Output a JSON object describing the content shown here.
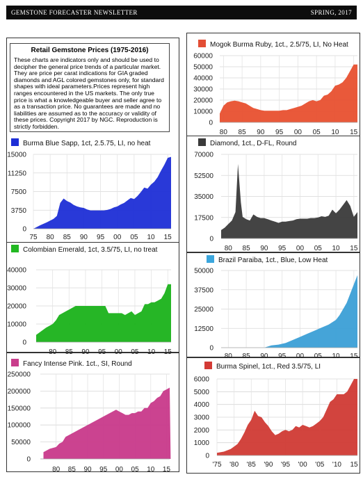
{
  "header": {
    "left": "GEMSTONE FORECASTER NEWSLETTER",
    "right": "SPRING, 2017"
  },
  "intro": {
    "title": "Retail Gemstone Prices (1975-2016)",
    "body": "These charts are indicators only and should be used to decipher the general price trends of a particular market.  They are price per carat indications for GIA graded diamonds and AGL colored gemstones only, for standard shapes with ideal parameters.Prices represent high ranges encountered in the US markets. The only true price is what a knowledgeable buyer and seller agree to as a transaction price.  No guarantees are made and no liabilities are assumed as to the accuracy or validity of these prices.  Copyright 2017 by NGC.  Reproduction is strictly forbidden."
  },
  "chart_data": [
    {
      "id": "sapphire",
      "type": "area",
      "title": "Burma Blue Sapp, 1ct, 2.5.75, LI, no heat",
      "color": "#1d2ed6",
      "legend_color": "#1d2ed6",
      "ylim": [
        0,
        15000
      ],
      "yticks": [
        "0",
        "3750",
        "7500",
        "11250",
        "15000"
      ],
      "xlim": [
        1975,
        2016
      ],
      "xticks": [
        1975,
        1980,
        1985,
        1990,
        1995,
        2000,
        2005,
        2010,
        2015
      ],
      "xtick_labels": [
        "75",
        "80",
        "85",
        "90",
        "95",
        "00",
        "05",
        "10",
        "15"
      ],
      "x": [
        1975,
        1977,
        1979,
        1981,
        1982,
        1983,
        1984,
        1985,
        1986,
        1987,
        1988,
        1989,
        1990,
        1991,
        1992,
        1994,
        1996,
        1997,
        1998,
        1999,
        2000,
        2001,
        2002,
        2003,
        2004,
        2005,
        2006,
        2007,
        2008,
        2009,
        2010,
        2011,
        2012,
        2013,
        2014,
        2015,
        2016
      ],
      "values": [
        0,
        700,
        1300,
        2000,
        2600,
        5200,
        6100,
        5600,
        5300,
        4800,
        4500,
        4300,
        4200,
        3900,
        3700,
        3700,
        3700,
        3800,
        4000,
        4300,
        4500,
        4900,
        5200,
        5700,
        6200,
        6000,
        6600,
        7400,
        8300,
        8100,
        8900,
        9500,
        10400,
        11700,
        12900,
        14300,
        14500
      ]
    },
    {
      "id": "emerald",
      "type": "area",
      "title": "Colombian Emerald, 1ct, 3.5/75, LI, no treat",
      "color": "#1ab21a",
      "legend_color": "#22b822",
      "ylim": [
        0,
        40000
      ],
      "yticks": [
        "0",
        "10000",
        "20000",
        "30000",
        "40000"
      ],
      "xlim": [
        1975,
        2016
      ],
      "xticks": [
        1980,
        1985,
        1990,
        1995,
        2000,
        2005,
        2010,
        2015
      ],
      "xtick_labels": [
        "80",
        "85",
        "90",
        "95",
        "00",
        "05",
        "10",
        "15"
      ],
      "x": [
        1975,
        1978,
        1980,
        1981,
        1982,
        1983,
        1984,
        1985,
        1986,
        1987,
        1988,
        1989,
        1990,
        1991,
        1992,
        1993,
        1994,
        1995,
        1996,
        1997,
        1998,
        1999,
        2000,
        2001,
        2002,
        2003,
        2004,
        2005,
        2006,
        2007,
        2008,
        2009,
        2010,
        2011,
        2012,
        2013,
        2014,
        2015,
        2016
      ],
      "values": [
        4000,
        8000,
        10000,
        12000,
        15000,
        16000,
        17000,
        18000,
        19000,
        20000,
        20000,
        20000,
        20000,
        20000,
        20000,
        20000,
        20000,
        20000,
        20000,
        16000,
        16000,
        16000,
        16000,
        16000,
        15000,
        16000,
        17000,
        15000,
        16000,
        17000,
        21000,
        21000,
        22000,
        22000,
        23000,
        24000,
        27000,
        32000,
        32000
      ]
    },
    {
      "id": "pink",
      "type": "area",
      "title": "Fancy Intense Pink. 1ct., SI, Round",
      "color": "#c8398a",
      "legend_color": "#c93d8c",
      "ylim": [
        0,
        250000
      ],
      "yticks": [
        "0",
        "50000",
        "100000",
        "150000",
        "200000",
        "250000"
      ],
      "xlim": [
        1975,
        2016
      ],
      "xticks": [
        1980,
        1985,
        1990,
        1995,
        2000,
        2005,
        2010,
        2015
      ],
      "xtick_labels": [
        "80",
        "85",
        "90",
        "95",
        "00",
        "05",
        "10",
        "15"
      ],
      "x": [
        1976,
        1978,
        1980,
        1981,
        1982,
        1983,
        1985,
        1987,
        1989,
        1991,
        1993,
        1995,
        1997,
        1999,
        2000,
        2001,
        2002,
        2003,
        2004,
        2005,
        2006,
        2007,
        2008,
        2009,
        2010,
        2011,
        2012,
        2013,
        2014,
        2015,
        2016,
        2016.3
      ],
      "values": [
        20000,
        30000,
        35000,
        45000,
        50000,
        65000,
        75000,
        85000,
        95000,
        105000,
        115000,
        125000,
        135000,
        145000,
        140000,
        135000,
        130000,
        130000,
        135000,
        135000,
        140000,
        140000,
        150000,
        150000,
        165000,
        170000,
        180000,
        185000,
        200000,
        205000,
        210000,
        0
      ]
    },
    {
      "id": "ruby",
      "type": "area",
      "title": "Mogok Burma Ruby, 1ct., 2.5/75, LI, No Heat",
      "color": "#e8502f",
      "legend_color": "#e34e35",
      "ylim": [
        0,
        60000
      ],
      "yticks": [
        "0",
        "10000",
        "20000",
        "30000",
        "40000",
        "50000",
        "60000"
      ],
      "xlim": [
        1979,
        2016
      ],
      "xticks": [
        1980,
        1985,
        1990,
        1995,
        2000,
        2005,
        2010,
        2015
      ],
      "xtick_labels": [
        "80",
        "85",
        "90",
        "95",
        "00",
        "05",
        "10",
        "15"
      ],
      "x": [
        1979,
        1980,
        1981,
        1982,
        1983,
        1984,
        1985,
        1986,
        1987,
        1988,
        1989,
        1990,
        1991,
        1992,
        1993,
        1994,
        1995,
        1996,
        1997,
        1998,
        1999,
        2000,
        2001,
        2002,
        2003,
        2004,
        2005,
        2006,
        2007,
        2008,
        2009,
        2010,
        2011,
        2012,
        2013,
        2014,
        2015,
        2016
      ],
      "values": [
        8000,
        15000,
        18000,
        19000,
        19500,
        19000,
        18000,
        17000,
        15000,
        13000,
        12000,
        11000,
        10500,
        10500,
        10500,
        10500,
        10500,
        11000,
        11000,
        12000,
        13000,
        14000,
        15000,
        17000,
        19000,
        20000,
        19000,
        20000,
        24000,
        25000,
        28000,
        33000,
        34000,
        36000,
        40000,
        46000,
        52000,
        52000
      ]
    },
    {
      "id": "diamond",
      "type": "area",
      "title": "Diamond, 1ct., D-FL, Round",
      "color": "#3a3a3a",
      "legend_color": "#3a3a3a",
      "ylim": [
        0,
        70000
      ],
      "yticks": [
        "0",
        "17500",
        "35000",
        "52500",
        "70000"
      ],
      "xlim": [
        1978,
        2016
      ],
      "xticks": [
        1980,
        1985,
        1990,
        1995,
        2000,
        2005,
        2010,
        2015
      ],
      "xtick_labels": [
        "80",
        "85",
        "90",
        "95",
        "00",
        "05",
        "10",
        "15"
      ],
      "x": [
        1978,
        1979,
        1980,
        1981,
        1982,
        1982.7,
        1983.5,
        1984,
        1985,
        1986,
        1987,
        1988,
        1989,
        1990,
        1991,
        1992,
        1993,
        1994,
        1995,
        1996,
        1997,
        1998,
        1999,
        2000,
        2001,
        2002,
        2003,
        2004,
        2005,
        2006,
        2007,
        2008,
        2009,
        2010,
        2011,
        2012,
        2013,
        2014,
        2015,
        2016
      ],
      "values": [
        7000,
        9000,
        12000,
        15000,
        22000,
        62000,
        30000,
        18000,
        16000,
        15000,
        20000,
        18000,
        17000,
        17000,
        16000,
        15000,
        14000,
        13000,
        14000,
        14000,
        14500,
        15000,
        16000,
        16500,
        16500,
        16500,
        17000,
        17000,
        17500,
        18500,
        18000,
        19000,
        24000,
        21000,
        24000,
        28000,
        32000,
        27000,
        18000,
        22000
      ]
    },
    {
      "id": "paraiba",
      "type": "area",
      "title": "Brazil Paraiba, 1ct., Blue, Low Heat",
      "color": "#3b9fd6",
      "legend_color": "#3ba6dd",
      "ylim": [
        0,
        50000
      ],
      "yticks": [
        "0",
        "12500",
        "25000",
        "37500",
        "50000"
      ],
      "xlim": [
        1978,
        2016
      ],
      "xticks": [
        1980,
        1985,
        1990,
        1995,
        2000,
        2005,
        2010,
        2015
      ],
      "xtick_labels": [
        "80",
        "85",
        "90",
        "95",
        "00",
        "05",
        "10",
        "15"
      ],
      "x": [
        1990,
        1992,
        1994,
        1996,
        1998,
        2000,
        2002,
        2004,
        2006,
        2008,
        2010,
        2011,
        2012,
        2013,
        2014,
        2015,
        2016
      ],
      "values": [
        0,
        1500,
        2000,
        3000,
        5000,
        7000,
        9000,
        11000,
        13000,
        15000,
        18000,
        21000,
        25000,
        29000,
        35000,
        41000,
        47000
      ]
    },
    {
      "id": "spinel",
      "type": "area",
      "title": "Burma Spinel, 1ct., Red 3.5/75, LI",
      "color": "#d03a34",
      "legend_color": "#d33a35",
      "ylim": [
        0,
        6000
      ],
      "yticks": [
        "0",
        "1000",
        "2000",
        "3000",
        "4000",
        "5000",
        "6000"
      ],
      "xlim": [
        1975,
        2016
      ],
      "xticks": [
        1975,
        1980,
        1985,
        1990,
        1995,
        2000,
        2005,
        2010,
        2015
      ],
      "xtick_labels": [
        "'75",
        "'80",
        "'85",
        "'90",
        "'95",
        "'00",
        "'05",
        "'10",
        "15"
      ],
      "x": [
        1975,
        1977,
        1979,
        1980,
        1981,
        1982,
        1983,
        1984,
        1985,
        1986,
        1987,
        1988,
        1989,
        1990,
        1991,
        1992,
        1993,
        1994,
        1995,
        1996,
        1997,
        1998,
        1999,
        2000,
        2001,
        2002,
        2003,
        2004,
        2005,
        2006,
        2007,
        2008,
        2009,
        2010,
        2011,
        2012,
        2013,
        2014,
        2015,
        2016
      ],
      "values": [
        200,
        300,
        500,
        700,
        900,
        1300,
        1800,
        2400,
        2800,
        3500,
        3100,
        3000,
        2600,
        2300,
        1900,
        1600,
        1700,
        1900,
        2000,
        1900,
        2000,
        2300,
        2200,
        2400,
        2300,
        2200,
        2300,
        2500,
        2700,
        3000,
        3600,
        4200,
        4400,
        4800,
        4800,
        4800,
        5000,
        5500,
        6000,
        6000
      ]
    }
  ]
}
